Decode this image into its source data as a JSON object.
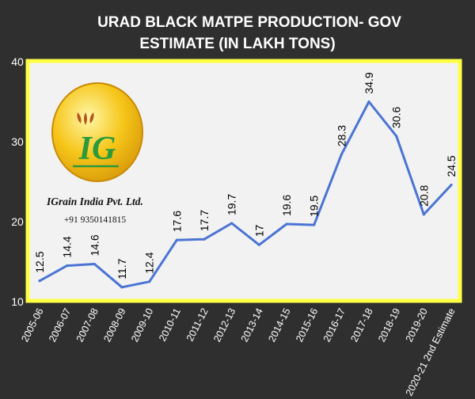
{
  "chart_data": {
    "type": "line",
    "title_lines": [
      "URAD BLACK MATPE PRODUCTION- GOV",
      "ESTIMATE (IN LAKH TONS)"
    ],
    "categories": [
      "2005-06",
      "2006-07",
      "2007-08",
      "2008-09",
      "2009-10",
      "2010-11",
      "2011-12",
      "2012-13",
      "2013-14",
      "2014-15",
      "2015-16",
      "2016-17",
      "2017-18",
      "2018-19",
      "2019-20",
      "2020-21 2nd Estimate"
    ],
    "values": [
      12.5,
      14.4,
      14.6,
      11.7,
      12.4,
      17.6,
      17.7,
      19.7,
      17,
      19.6,
      19.5,
      28.3,
      34.9,
      30.6,
      20.8,
      24.5
    ],
    "value_labels": [
      "12.5",
      "14.4",
      "14.6",
      "11.7",
      "12.4",
      "17.6",
      "17.7",
      "19.7",
      "17",
      "19.6",
      "19.5",
      "28.3",
      "34.9",
      "30.6",
      "20.8",
      "24.5"
    ],
    "ylim": [
      10,
      40
    ],
    "yticks": [
      "10",
      "20",
      "30",
      "40"
    ],
    "grid": false,
    "colors": {
      "background": "#2f2f2f",
      "plot_bg": "#f2f2f2",
      "plot_border": "#ffff44",
      "line": "#4a74d4",
      "text": "#ffffff",
      "label_text": "#000000"
    }
  },
  "watermark": {
    "logo_text": "IG",
    "company": "IGrain India Pvt. Ltd.",
    "phone": "+91 9350141815"
  }
}
